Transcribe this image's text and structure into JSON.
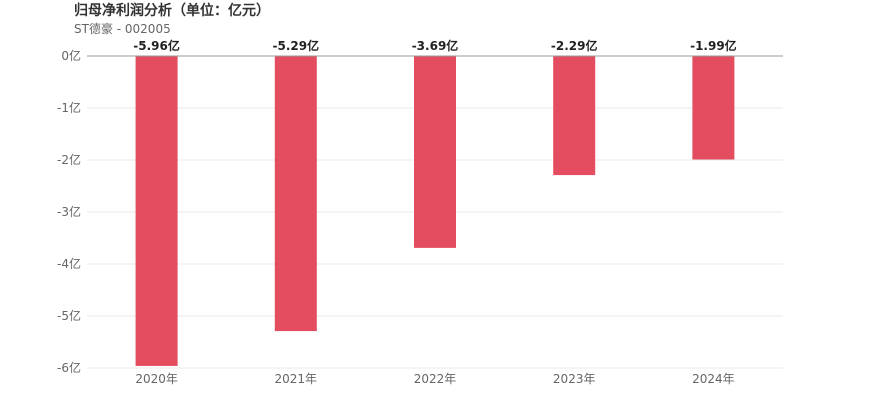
{
  "header": {
    "title": "归母净利润分析（单位：亿元）",
    "subtitle": "ST德豪 - 002005"
  },
  "colors": {
    "bar": "#e44d5f",
    "grid": "#e8e8e8",
    "zero_line": "#999999",
    "tick_text": "#666666"
  },
  "chart_data": {
    "type": "bar",
    "title": "归母净利润分析（单位：亿元）",
    "subtitle": "ST德豪 - 002005",
    "categories": [
      "2020年",
      "2021年",
      "2022年",
      "2023年",
      "2024年"
    ],
    "values": [
      -5.96,
      -5.29,
      -3.69,
      -2.29,
      -1.99
    ],
    "data_labels": [
      "-5.96亿",
      "-5.29亿",
      "-3.69亿",
      "-2.29亿",
      "-1.99亿"
    ],
    "y_ticks": [
      0,
      -1,
      -2,
      -3,
      -4,
      -5,
      -6
    ],
    "y_tick_labels": [
      "0亿",
      "-1亿",
      "-2亿",
      "-3亿",
      "-4亿",
      "-5亿",
      "-6亿"
    ],
    "ylim": [
      -6,
      0
    ],
    "grid": true,
    "legend": "none"
  }
}
